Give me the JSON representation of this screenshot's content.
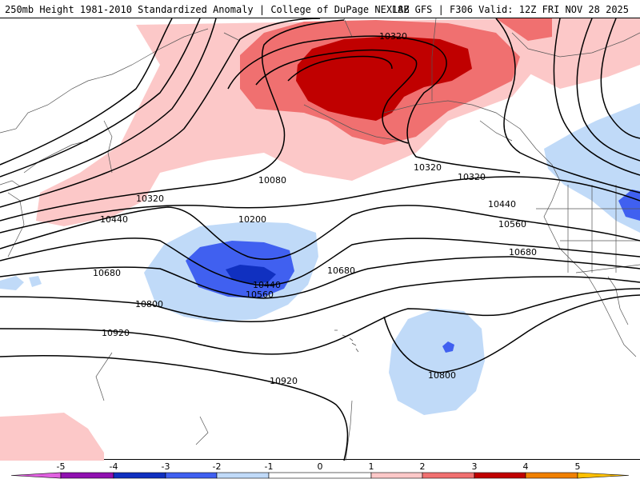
{
  "header": {
    "title_left": "250mb Height 1981-2010 Standardized Anomaly | College of DuPage NEXLAB",
    "title_right": "18Z GFS | F306 Valid: 12Z FRI NOV 28 2025"
  },
  "contour_labels": {
    "c1": "10320",
    "c2": "10080",
    "c3": "10320",
    "c4": "10320",
    "c5": "10200",
    "c6": "10440",
    "c7": "10440",
    "c8": "10560",
    "c9": "10680",
    "c10": "10440",
    "c11": "10560",
    "c12": "10680",
    "c13": "10680",
    "c14": "10800",
    "c15": "10920",
    "c16": "10920",
    "c17": "10800"
  },
  "legend": {
    "ticks": [
      "-5",
      "-4",
      "-3",
      "-2",
      "-1",
      "0",
      "1",
      "2",
      "3",
      "4",
      "5"
    ],
    "colors": {
      "neg5": "#e060e0",
      "neg4": "#9010b0",
      "neg3": "#1030c0",
      "neg2": "#4060f0",
      "neg1": "#c0daf8",
      "zero": "#ffffff",
      "pos1": "#fcc8c8",
      "pos2": "#f07070",
      "pos3": "#c00000",
      "pos4": "#f08000",
      "pos5": "#ffc000"
    }
  }
}
